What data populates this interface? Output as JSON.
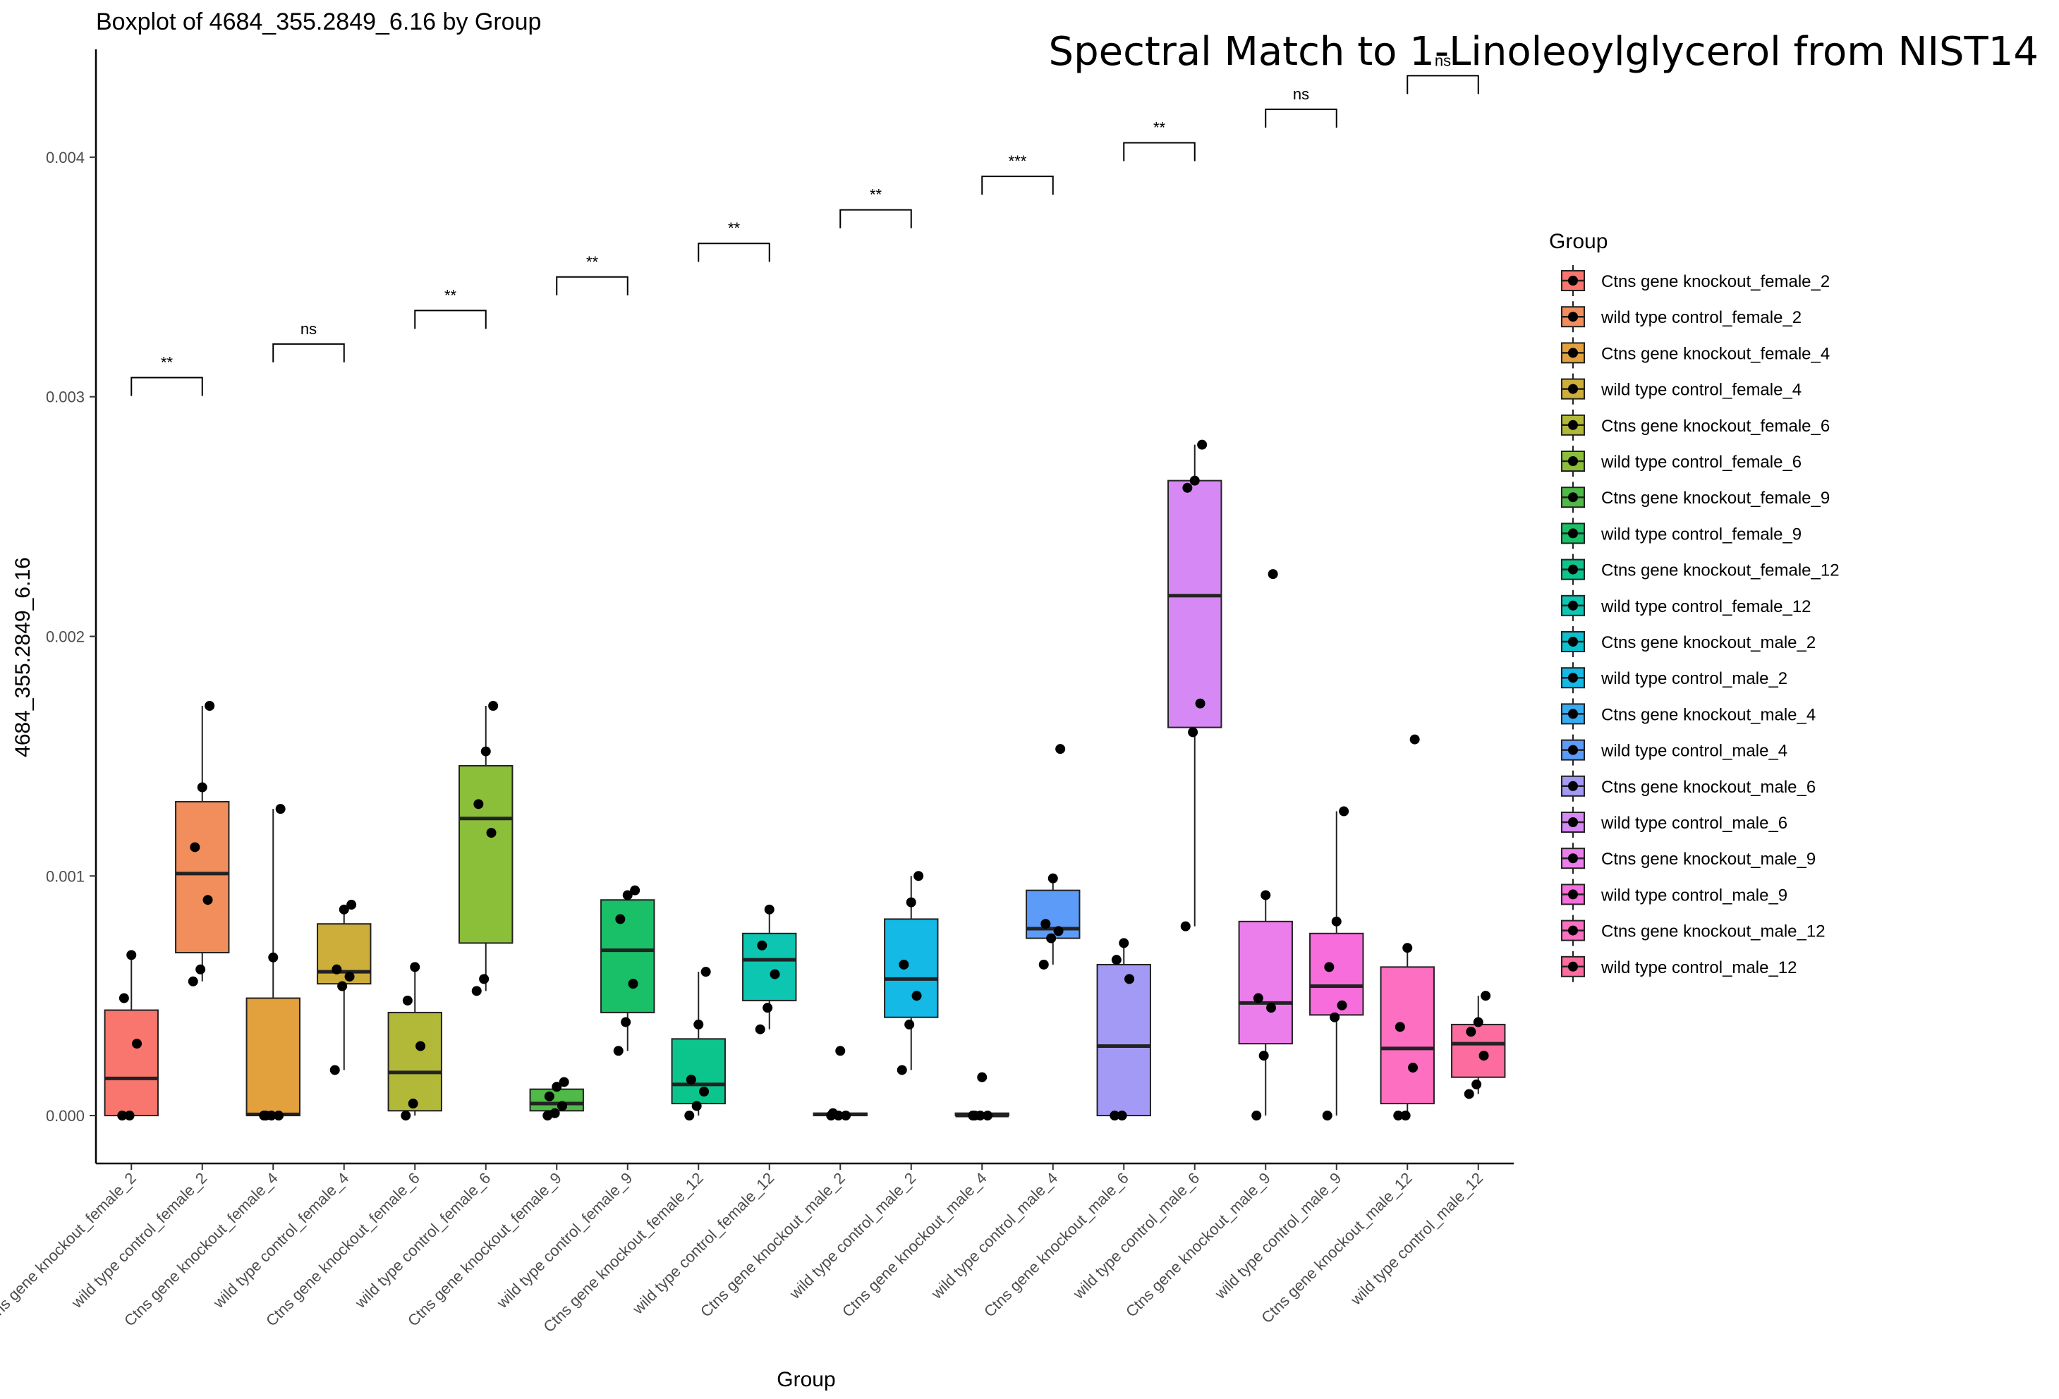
{
  "chart_data": {
    "type": "boxplot",
    "title": "Boxplot of 4684_355.2849_6.16 by Group",
    "overlay_title": "Spectral Match to 1-Linoleoylglycerol from NIST14",
    "xlabel": "Group",
    "ylabel": "4684_355.2849_6.16",
    "ylim": [
      -0.0002,
      0.00445
    ],
    "yticks": [
      0,
      0.001,
      0.002,
      0.003,
      0.004
    ],
    "ytick_labels": [
      "0.000",
      "0.001",
      "0.002",
      "0.003",
      "0.004"
    ],
    "grid": false,
    "legend": {
      "title": "Group",
      "position": "right"
    },
    "groups": [
      {
        "name": "Ctns gene knockout_female_2",
        "color": "#F8766D",
        "q1": 0.0,
        "median": 0.000155,
        "q3": 0.00044,
        "whisker_low": 0.0,
        "whisker_high": 0.00067,
        "points": [
          0.0,
          0.0,
          0.0003,
          0.00049,
          0.00067
        ]
      },
      {
        "name": "wild type control_female_2",
        "color": "#F28E5B",
        "q1": 0.00068,
        "median": 0.00101,
        "q3": 0.00131,
        "whisker_low": 0.00056,
        "whisker_high": 0.00171,
        "points": [
          0.00056,
          0.00061,
          0.0009,
          0.00112,
          0.00137,
          0.00171
        ]
      },
      {
        "name": "Ctns gene knockout_female_4",
        "color": "#E3A13E",
        "q1": 0.0,
        "median": 5e-06,
        "q3": 0.00049,
        "whisker_low": 0.0,
        "whisker_high": 0.00128,
        "points": [
          0.0,
          0.0,
          0.0,
          0.0,
          0.00066,
          0.00128
        ]
      },
      {
        "name": "wild type control_female_4",
        "color": "#CDAE3B",
        "q1": 0.00055,
        "median": 0.0006,
        "q3": 0.0008,
        "whisker_low": 0.00019,
        "whisker_high": 0.00088,
        "points": [
          0.00019,
          0.00054,
          0.00058,
          0.00061,
          0.00086,
          0.00088
        ]
      },
      {
        "name": "Ctns gene knockout_female_6",
        "color": "#B2B939",
        "q1": 2e-05,
        "median": 0.00018,
        "q3": 0.00043,
        "whisker_low": 0.0,
        "whisker_high": 0.00062,
        "points": [
          0.0,
          5e-05,
          0.00029,
          0.00048,
          0.00062
        ]
      },
      {
        "name": "wild type control_female_6",
        "color": "#8BBF3A",
        "q1": 0.00072,
        "median": 0.00124,
        "q3": 0.00146,
        "whisker_low": 0.00052,
        "whisker_high": 0.00171,
        "points": [
          0.00052,
          0.00057,
          0.00118,
          0.0013,
          0.00152,
          0.00171
        ]
      },
      {
        "name": "Ctns gene knockout_female_9",
        "color": "#4FBA47",
        "q1": 2e-05,
        "median": 5e-05,
        "q3": 0.00011,
        "whisker_low": 0.0,
        "whisker_high": 0.00014,
        "points": [
          0.0,
          1e-05,
          4e-05,
          8e-05,
          0.00012,
          0.00014
        ]
      },
      {
        "name": "wild type control_female_9",
        "color": "#19C067",
        "q1": 0.00043,
        "median": 0.00069,
        "q3": 0.0009,
        "whisker_low": 0.00027,
        "whisker_high": 0.00094,
        "points": [
          0.00027,
          0.00039,
          0.00055,
          0.00082,
          0.00092,
          0.00094
        ]
      },
      {
        "name": "Ctns gene knockout_female_12",
        "color": "#0BC58D",
        "q1": 5e-05,
        "median": 0.00013,
        "q3": 0.00032,
        "whisker_low": 0.0,
        "whisker_high": 0.0006,
        "points": [
          0.0,
          4e-05,
          0.0001,
          0.00015,
          0.00038,
          0.0006
        ]
      },
      {
        "name": "wild type control_female_12",
        "color": "#0CC6B2",
        "q1": 0.00048,
        "median": 0.00065,
        "q3": 0.00076,
        "whisker_low": 0.00036,
        "whisker_high": 0.00086,
        "points": [
          0.00036,
          0.00045,
          0.00059,
          0.00071,
          0.00086
        ]
      },
      {
        "name": "Ctns gene knockout_male_2",
        "color": "#0BC1CF",
        "q1": 0.0,
        "median": 5e-06,
        "q3": 1e-05,
        "whisker_low": 0.0,
        "whisker_high": 1e-05,
        "points": [
          0.0,
          0.0,
          0.0,
          1e-05,
          0.00027
        ]
      },
      {
        "name": "wild type control_male_2",
        "color": "#14B9E6",
        "q1": 0.00041,
        "median": 0.00057,
        "q3": 0.00082,
        "whisker_low": 0.00019,
        "whisker_high": 0.001,
        "points": [
          0.00019,
          0.00038,
          0.0005,
          0.00063,
          0.00089,
          0.001
        ]
      },
      {
        "name": "Ctns gene knockout_male_4",
        "color": "#37ACF3",
        "q1": 0.0,
        "median": 0.0,
        "q3": 1e-05,
        "whisker_low": 0.0,
        "whisker_high": 1e-05,
        "points": [
          0.0,
          0.0,
          0.0,
          0.0,
          0.00016
        ]
      },
      {
        "name": "wild type control_male_4",
        "color": "#5C9BF8",
        "q1": 0.00074,
        "median": 0.00078,
        "q3": 0.00094,
        "whisker_low": 0.00063,
        "whisker_high": 0.00099,
        "points": [
          0.00063,
          0.00074,
          0.00077,
          0.0008,
          0.00099,
          0.00153
        ]
      },
      {
        "name": "Ctns gene knockout_male_6",
        "color": "#A39AF6",
        "q1": 0.0,
        "median": 0.00029,
        "q3": 0.00063,
        "whisker_low": 0.0,
        "whisker_high": 0.00072,
        "points": [
          0.0,
          0.0,
          0.00057,
          0.00065,
          0.00072
        ]
      },
      {
        "name": "wild type control_male_6",
        "color": "#D689F4",
        "q1": 0.00162,
        "median": 0.00217,
        "q3": 0.00265,
        "whisker_low": 0.00079,
        "whisker_high": 0.0028,
        "points": [
          0.00079,
          0.0016,
          0.00172,
          0.00262,
          0.00265,
          0.0028
        ]
      },
      {
        "name": "Ctns gene knockout_male_9",
        "color": "#EC7EEC",
        "q1": 0.0003,
        "median": 0.00047,
        "q3": 0.00081,
        "whisker_low": 0.0,
        "whisker_high": 0.00092,
        "points": [
          0.0,
          0.00025,
          0.00045,
          0.00049,
          0.00092,
          0.00226
        ]
      },
      {
        "name": "wild type control_male_9",
        "color": "#F76DDB",
        "q1": 0.00042,
        "median": 0.00054,
        "q3": 0.00076,
        "whisker_low": 0.0,
        "whisker_high": 0.00127,
        "points": [
          0.0,
          0.00041,
          0.00046,
          0.00062,
          0.00081,
          0.00127
        ]
      },
      {
        "name": "Ctns gene knockout_male_12",
        "color": "#FC6FC1",
        "q1": 5e-05,
        "median": 0.00028,
        "q3": 0.00062,
        "whisker_low": 0.0,
        "whisker_high": 0.0007,
        "points": [
          0.0,
          0.0,
          0.0002,
          0.00037,
          0.0007,
          0.00157
        ]
      },
      {
        "name": "wild type control_male_12",
        "color": "#FD6C9F",
        "q1": 0.00016,
        "median": 0.0003,
        "q3": 0.00038,
        "whisker_low": 9e-05,
        "whisker_high": 0.0005,
        "points": [
          9e-05,
          0.00013,
          0.00025,
          0.00035,
          0.00039,
          0.0005
        ]
      }
    ],
    "comparisons": [
      {
        "pair": [
          0,
          1
        ],
        "label": "**",
        "y": 0.00308
      },
      {
        "pair": [
          2,
          3
        ],
        "label": "ns",
        "y": 0.00322
      },
      {
        "pair": [
          4,
          5
        ],
        "label": "**",
        "y": 0.00336
      },
      {
        "pair": [
          6,
          7
        ],
        "label": "**",
        "y": 0.0035
      },
      {
        "pair": [
          8,
          9
        ],
        "label": "**",
        "y": 0.00364
      },
      {
        "pair": [
          10,
          11
        ],
        "label": "**",
        "y": 0.00378
      },
      {
        "pair": [
          12,
          13
        ],
        "label": "***",
        "y": 0.00392
      },
      {
        "pair": [
          14,
          15
        ],
        "label": "**",
        "y": 0.00406
      },
      {
        "pair": [
          16,
          17
        ],
        "label": "ns",
        "y": 0.0042
      },
      {
        "pair": [
          18,
          19
        ],
        "label": "ns",
        "y": 0.00434
      }
    ]
  }
}
